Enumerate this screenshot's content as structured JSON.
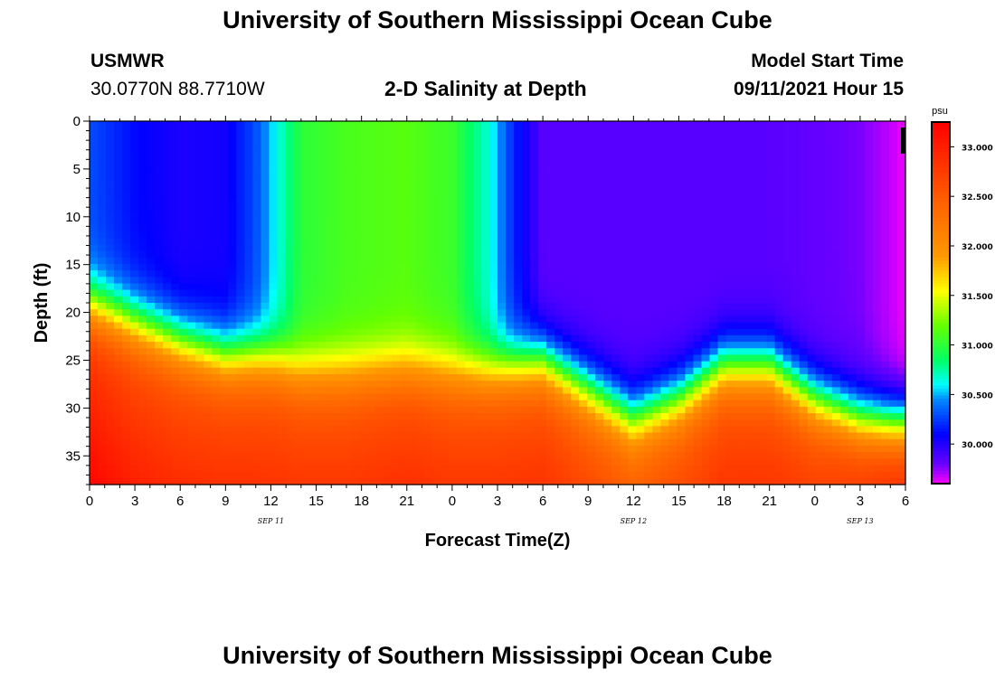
{
  "header": {
    "title": "University of Southern Mississippi Ocean Cube",
    "station": "USMWR",
    "coordinates": "30.0770N  88.7710W",
    "plot_title": "2-D Salinity at Depth",
    "model_start_label": "Model Start Time",
    "model_start_value": "09/11/2021 Hour 15"
  },
  "footer": {
    "title": "University of Southern Mississippi Ocean Cube"
  },
  "chart_data": {
    "type": "heatmap",
    "title": "2-D Salinity at Depth",
    "xlabel": "Forecast Time(Z)",
    "ylabel": "Depth (ft)",
    "x_unit": "hours since 2021-09-11 00Z",
    "xlim": [
      0,
      54
    ],
    "ylim": [
      0,
      38
    ],
    "y_inverted": true,
    "x_ticks": [
      0,
      3,
      6,
      9,
      12,
      15,
      18,
      21,
      24,
      27,
      30,
      33,
      36,
      39,
      42,
      45,
      48,
      51,
      54
    ],
    "x_tick_labels": [
      "0",
      "3",
      "6",
      "9",
      "12",
      "15",
      "18",
      "21",
      "0",
      "3",
      "6",
      "9",
      "12",
      "15",
      "18",
      "21",
      "0",
      "3",
      "6"
    ],
    "y_ticks": [
      0,
      5,
      10,
      15,
      20,
      25,
      30,
      35
    ],
    "y_tick_labels": [
      "0",
      "5",
      "10",
      "15",
      "20",
      "25",
      "30",
      "35"
    ],
    "date_labels": [
      {
        "x": 12,
        "text": "SEP 11"
      },
      {
        "x": 36,
        "text": "SEP 12"
      },
      {
        "x": 51,
        "text": "SEP 13"
      }
    ],
    "colorbar": {
      "unit": "psu",
      "min": 29.6,
      "max": 33.25,
      "ticks": [
        30.0,
        30.5,
        31.0,
        31.5,
        32.0,
        32.5,
        33.0
      ],
      "tick_labels": [
        "30.000",
        "30.500",
        "31.000",
        "31.500",
        "32.000",
        "32.500",
        "33.000"
      ],
      "colormap": [
        [
          29.6,
          "#ff00ff"
        ],
        [
          29.8,
          "#6a00ff"
        ],
        [
          30.1,
          "#0000ff"
        ],
        [
          30.45,
          "#0088ff"
        ],
        [
          30.6,
          "#00ffff"
        ],
        [
          30.85,
          "#00ff66"
        ],
        [
          31.2,
          "#66ff00"
        ],
        [
          31.55,
          "#ffff00"
        ],
        [
          31.9,
          "#ff9900"
        ],
        [
          32.4,
          "#ff6600"
        ],
        [
          33.25,
          "#ff0000"
        ]
      ]
    },
    "columns": [
      {
        "t": 0,
        "surface": 30.3,
        "cline": 19.0,
        "bottom": 32.7
      },
      {
        "t": 3,
        "surface": 30.12,
        "cline": 21.0,
        "bottom": 32.55
      },
      {
        "t": 6,
        "surface": 30.02,
        "cline": 23.0,
        "bottom": 32.5
      },
      {
        "t": 9,
        "surface": 30.05,
        "cline": 24.5,
        "bottom": 32.5
      },
      {
        "t": 11,
        "surface": 30.3,
        "cline": 24.5,
        "bottom": 32.5
      },
      {
        "t": 12.5,
        "surface": 30.65,
        "cline": 25.0,
        "bottom": 32.5
      },
      {
        "t": 14,
        "surface": 31.0,
        "cline": 26.0,
        "bottom": 32.5
      },
      {
        "t": 17,
        "surface": 31.1,
        "cline": 26.0,
        "bottom": 32.5
      },
      {
        "t": 21,
        "surface": 31.15,
        "cline": 25.5,
        "bottom": 32.55
      },
      {
        "t": 24,
        "surface": 31.05,
        "cline": 26.0,
        "bottom": 32.5
      },
      {
        "t": 26.5,
        "surface": 30.65,
        "cline": 26.0,
        "bottom": 32.5
      },
      {
        "t": 28,
        "surface": 30.2,
        "cline": 25.5,
        "bottom": 32.5
      },
      {
        "t": 30,
        "surface": 29.85,
        "cline": 25.0,
        "bottom": 32.5
      },
      {
        "t": 33,
        "surface": 29.85,
        "cline": 28.0,
        "bottom": 32.4
      },
      {
        "t": 36,
        "surface": 29.85,
        "cline": 31.0,
        "bottom": 32.3
      },
      {
        "t": 39,
        "surface": 29.85,
        "cline": 29.0,
        "bottom": 32.4
      },
      {
        "t": 42,
        "surface": 29.85,
        "cline": 25.5,
        "bottom": 32.5
      },
      {
        "t": 45,
        "surface": 29.85,
        "cline": 25.5,
        "bottom": 32.5
      },
      {
        "t": 48,
        "surface": 29.82,
        "cline": 29.0,
        "bottom": 32.5
      },
      {
        "t": 51,
        "surface": 29.78,
        "cline": 31.0,
        "bottom": 32.6
      },
      {
        "t": 53,
        "surface": 29.68,
        "cline": 31.5,
        "bottom": 32.7
      },
      {
        "t": 54,
        "surface": 29.62,
        "cline": 31.5,
        "bottom": 32.7
      }
    ]
  }
}
